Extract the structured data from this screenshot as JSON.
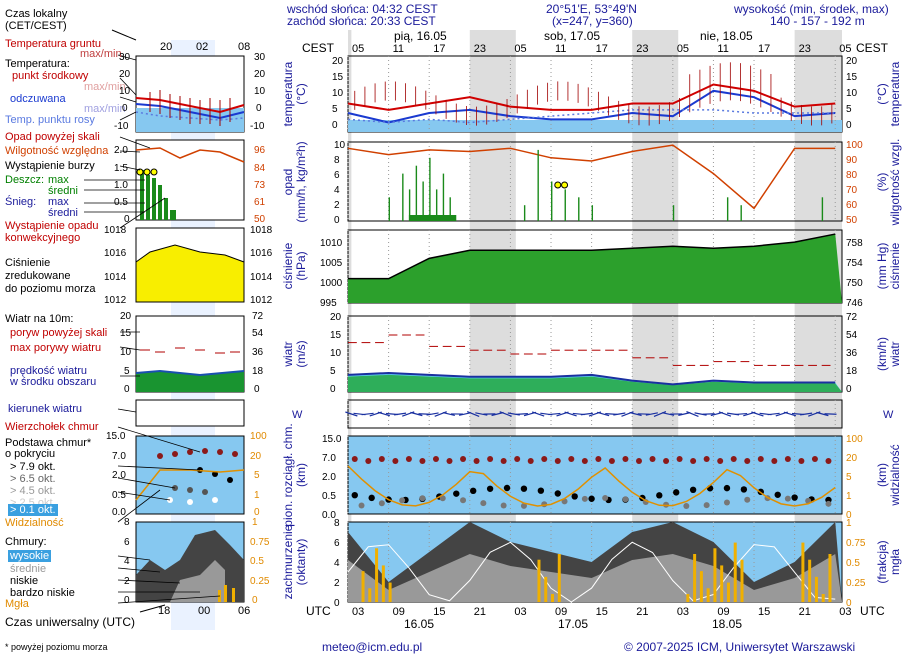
{
  "header": {
    "sunrise": "wschód słońca: 04:32 CEST",
    "sunset": "zachód słońca: 20:33 CEST",
    "coords": "20°51'E, 53°49'N",
    "grid": "(x=247, y=360)",
    "elev_title": "wysokość (min, środek, max)",
    "elev_values": "140 - 157 - 192 m"
  },
  "left": {
    "time_label": "Czas lokalny\n(CET/CEST)",
    "top_hours": [
      "20",
      "02",
      "08"
    ],
    "bottom_hours": [
      "18",
      "00",
      "06"
    ],
    "utc_label": "Czas uniwersalny (UTC)",
    "footnote": "* powyżej poziomu morza",
    "temp": {
      "ground": "Temperatura gruntu",
      "ground2": "max/min",
      "title": "Temperatura:",
      "mid": "punkt środkowy",
      "maxmin": "max/min",
      "feel": "odczuwana",
      "dew": "Temp. punktu rosy",
      "ticks_l": [
        "30",
        "20",
        "10",
        "0",
        "-10"
      ],
      "ticks_r": [
        "30",
        "20",
        "10",
        "0",
        "-10"
      ]
    },
    "precip": {
      "over": "Opad powyżej skali",
      "rh": "Wilgotność względna",
      "storm": "Wystąpienie burzy",
      "rain": "Deszcz:",
      "snow": "Śnieg:",
      "max": "max",
      "avg": "średni",
      "occ1": "Wystąpienie opadu",
      "occ2": "konwekcyjnego",
      "ticks_l": [
        "2.0",
        "1.5",
        "1.0",
        "0.5",
        "0"
      ],
      "ticks_r": [
        "96",
        "84",
        "73",
        "61",
        "50"
      ]
    },
    "press": {
      "l1": "Ciśnienie",
      "l2": "zredukowane",
      "l3": "do poziomu morza",
      "ticks_l": [
        "1018",
        "1016",
        "1014",
        "1012"
      ],
      "ticks_r": [
        "1018",
        "1016",
        "1014",
        "1012"
      ]
    },
    "wind": {
      "title": "Wiatr na 10m:",
      "gust_over": "poryw powyżej skali",
      "gust": "max porywy wiatru",
      "spd1": "prędkość wiatru",
      "spd2": "w środku obszaru",
      "ticks_l": [
        "20",
        "15",
        "10",
        "5",
        "0"
      ],
      "ticks_r": [
        "72",
        "54",
        "36",
        "18",
        "0"
      ]
    },
    "dir": {
      "label": "kierunek wiatru"
    },
    "cloudbase": {
      "top": "Wierzchołek chmur",
      "base1": "Podstawa chmur*",
      "base2": "o pokryciu",
      "o79": "> 7.9 okt.",
      "o65": "> 6.5 okt.",
      "o45": "> 4.5 okt.",
      "o25": "> 2.5 okt.",
      "o01": "> 0.1 okt.",
      "vis": "Widzialność",
      "ticks_l": [
        "15.0",
        "7.0",
        "2.0",
        "0.5",
        "0.0"
      ],
      "ticks_r": [
        "100",
        "20",
        "5",
        "1",
        "0"
      ]
    },
    "clouds": {
      "title": "Chmury:",
      "high": "wysokie",
      "mid": "średnie",
      "low": "niskie",
      "vlow": "bardzo niskie",
      "fog": "Mgła",
      "ticks_l": [
        "8",
        "6",
        "4",
        "2",
        "0"
      ],
      "ticks_r": [
        "1",
        "0.75",
        "0.5",
        "0.25",
        "0"
      ]
    }
  },
  "main": {
    "cest": "CEST",
    "utc": "UTC",
    "top_hours": [
      "05",
      "11",
      "17",
      "23",
      "05",
      "11",
      "17",
      "23",
      "05",
      "11",
      "17",
      "23",
      "05"
    ],
    "bottom_hours": [
      "03",
      "09",
      "15",
      "21",
      "03",
      "09",
      "15",
      "21",
      "03",
      "09",
      "15",
      "21",
      "03"
    ],
    "top_days": [
      "pią, 16.05",
      "sob, 17.05",
      "nie, 18.05"
    ],
    "bottom_days": [
      "16.05",
      "17.05",
      "18.05"
    ],
    "panels": {
      "temp": {
        "ylabel_l": "temperatura\n(°C)",
        "ylabel_r": "(°C)\ntemperatura",
        "ticks": [
          "20",
          "15",
          "10",
          "5",
          "0"
        ]
      },
      "precip": {
        "ylabel_l": "opad\n(mm/h, kg/m²h)",
        "ylabel_r": "(%)\nwilgotność wzgl.",
        "ticks_l": [
          "10",
          "8",
          "6",
          "4",
          "2",
          "0"
        ],
        "ticks_r": [
          "100",
          "90",
          "80",
          "70",
          "60",
          "50"
        ]
      },
      "press": {
        "ylabel_l": "ciśnienie\n(hPa)",
        "ylabel_r": "(mm Hg)\nciśnienie",
        "ticks_l": [
          "1010",
          "1005",
          "1000",
          "995"
        ],
        "ticks_r": [
          "758",
          "754",
          "750",
          "746"
        ]
      },
      "wind": {
        "ylabel_l": "wiatr\n(m/s)",
        "ylabel_r": "(km/h)\nwiatr",
        "ticks_l": [
          "20",
          "15",
          "10",
          "5",
          "0"
        ],
        "ticks_r": [
          "72",
          "54",
          "36",
          "18",
          "0"
        ]
      },
      "dir": {
        "compass": "N/W/E/S"
      },
      "cloudbase": {
        "ylabel_l": "pion. rozciągł. chm.\n(km)",
        "ylabel_r": "(km)\nwidzialność",
        "ticks_l": [
          "15.0",
          "7.0",
          "2.0",
          "0.5",
          "0.0"
        ],
        "ticks_r": [
          "100",
          "20",
          "5",
          "1",
          "0"
        ]
      },
      "clouds": {
        "ylabel_l": "zachmurzenie\n(oktanty)",
        "ylabel_r": "(frakcja)\nmgła",
        "ticks_l": [
          "8",
          "6",
          "4",
          "2",
          "0"
        ],
        "ticks_r": [
          "1",
          "0.75",
          "0.5",
          "0.25",
          "0"
        ]
      }
    }
  },
  "footer": {
    "email": "meteo@icm.edu.pl",
    "copy": "© 2007-2025 ICM, Uniwersytet Warszawski"
  },
  "colors": {
    "text": "#1a1a9a",
    "red": "#c00000",
    "press": "#22b022",
    "wind": "#1aa01a",
    "sky": "#86c8f0",
    "night": "#dddddd",
    "dark": "#555555",
    "gold": "#f0b000"
  },
  "chart_data": [
    {
      "type": "line",
      "title": "temperatura",
      "x_hours": [
        0,
        6,
        12,
        18,
        24,
        30,
        36,
        42,
        48,
        54,
        60,
        66,
        72
      ],
      "series": [
        {
          "name": "punkt środkowy",
          "values": [
            7,
            5,
            7,
            9,
            6,
            5,
            5,
            7,
            7,
            13,
            11,
            6,
            7
          ]
        },
        {
          "name": "odczuwana",
          "values": [
            4,
            1,
            4,
            5,
            3,
            2,
            2,
            4,
            3,
            11,
            9,
            3,
            4
          ]
        },
        {
          "name": "Temp. punktu rosy",
          "values": [
            2,
            1,
            2,
            1,
            2,
            3,
            4,
            5,
            5,
            5,
            4,
            4,
            4
          ]
        }
      ],
      "ylim": [
        -2,
        22
      ]
    },
    {
      "type": "line",
      "title": "wilgotność wzgl.",
      "x_hours": [
        0,
        6,
        12,
        18,
        24,
        30,
        36,
        42,
        48,
        54,
        60,
        66,
        72
      ],
      "series": [
        {
          "name": "Wilgotność względna",
          "values": [
            96,
            92,
            95,
            94,
            96,
            90,
            88,
            94,
            98,
            80,
            58,
            96,
            96
          ]
        }
      ],
      "ylim": [
        50,
        100
      ]
    },
    {
      "type": "area",
      "title": "ciśnienie",
      "x_hours": [
        0,
        6,
        12,
        18,
        24,
        30,
        36,
        42,
        48,
        54,
        60,
        66,
        72
      ],
      "series": [
        {
          "name": "ciśnienie",
          "values": [
            1001,
            1001,
            1006,
            1008,
            1008,
            1008,
            1008,
            1008.5,
            1009,
            1008.5,
            1009,
            1010,
            1012
          ]
        }
      ],
      "ylim": [
        995,
        1013
      ]
    },
    {
      "type": "area",
      "title": "wiatr",
      "x_hours": [
        0,
        6,
        12,
        18,
        24,
        30,
        36,
        42,
        48,
        54,
        60,
        66,
        72
      ],
      "series": [
        {
          "name": "prędkość wiatru",
          "values": [
            4.5,
            5,
            4.5,
            4,
            4,
            4,
            4.5,
            3,
            2,
            3,
            2.5,
            2.5,
            2.5
          ]
        },
        {
          "name": "max porywy wiatru",
          "values": [
            13,
            15,
            12,
            11,
            10,
            11,
            11,
            9,
            7,
            8,
            7,
            7,
            7
          ]
        }
      ],
      "ylim": [
        0,
        20
      ]
    },
    {
      "type": "area",
      "title": "zachmurzenie",
      "x_hours": [
        0,
        6,
        12,
        18,
        24,
        30,
        36,
        42,
        48,
        54,
        60,
        66,
        72
      ],
      "series": [
        {
          "name": "niskie",
          "values": [
            7,
            2,
            5,
            8,
            6,
            5,
            4,
            7,
            8,
            6,
            2,
            4,
            8
          ]
        }
      ],
      "ylim": [
        0,
        8
      ]
    }
  ]
}
